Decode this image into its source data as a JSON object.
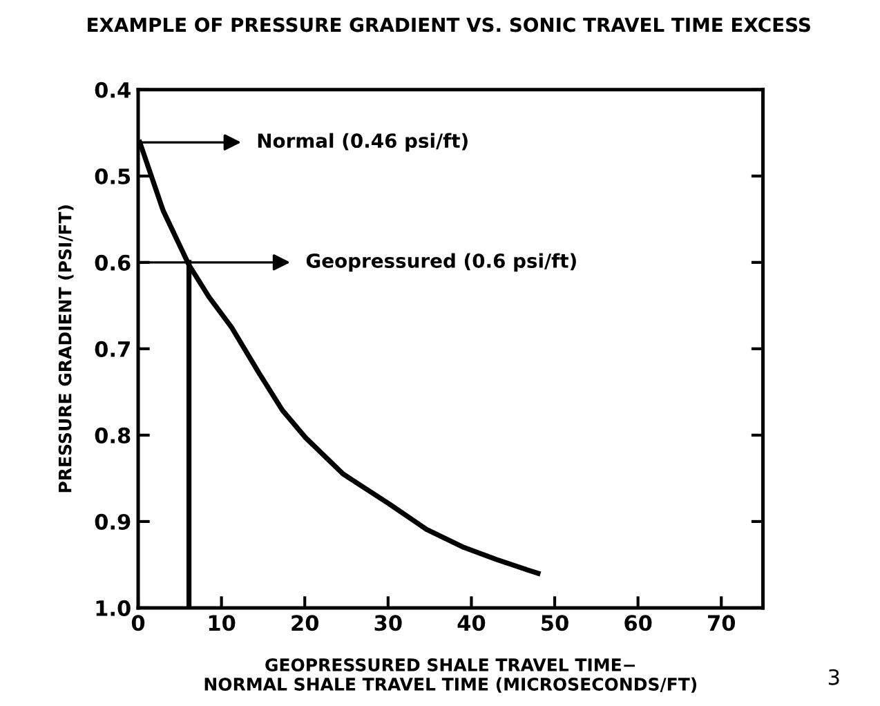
{
  "chart_data": {
    "type": "line",
    "title": "EXAMPLE OF PRESSURE GRADIENT VS. SONIC TRAVEL TIME EXCESS",
    "xlabel": "GEOPRESSURED SHALE TRAVEL TIME−\nNORMAL SHALE TRAVEL TIME (MICROSECONDS/FT)",
    "ylabel": "PRESSURE GRADIENT (PSI/FT)",
    "series": [
      {
        "color": "#000000",
        "x": [
          0.2,
          3,
          6.1,
          8.5,
          11.2,
          14.5,
          17.3,
          20.1,
          24.6,
          30.2,
          34.6,
          39.1,
          43,
          46.4,
          48
        ],
        "values": [
          0.461,
          0.54,
          0.603,
          0.64,
          0.675,
          0.728,
          0.771,
          0.803,
          0.845,
          0.88,
          0.909,
          0.93,
          0.944,
          0.955,
          0.96
        ]
      },
      {
        "color": "#000000",
        "x": [
          6.1,
          6.1
        ],
        "values": [
          0.6,
          1.0
        ]
      }
    ],
    "annotations": [
      {
        "text": "Normal (0.46 psi/ft)",
        "x": 0.2,
        "y": 0.461
      },
      {
        "text": "Geopressured (0.6 psi/ft)",
        "x": 6.1,
        "y": 0.6
      },
      "3"
    ],
    "xlim": [
      0,
      75
    ],
    "ylim": [
      1.0,
      0.4
    ],
    "xticks": [
      0,
      10,
      20,
      30,
      40,
      50,
      60,
      70
    ],
    "yticks": [
      {
        "value": 0.4,
        "label": "0.4"
      },
      {
        "value": 0.5,
        "label": "0.5"
      },
      {
        "value": 0.6,
        "label": "0.6"
      },
      {
        "value": 0.7,
        "label": "0.7"
      },
      {
        "value": 0.8,
        "label": "0.8"
      },
      {
        "value": 0.9,
        "label": "0.9"
      },
      {
        "value": 1.0,
        "label": "1.0"
      }
    ],
    "grid": false,
    "legend": false,
    "marker": "none",
    "line_style": "solid"
  }
}
